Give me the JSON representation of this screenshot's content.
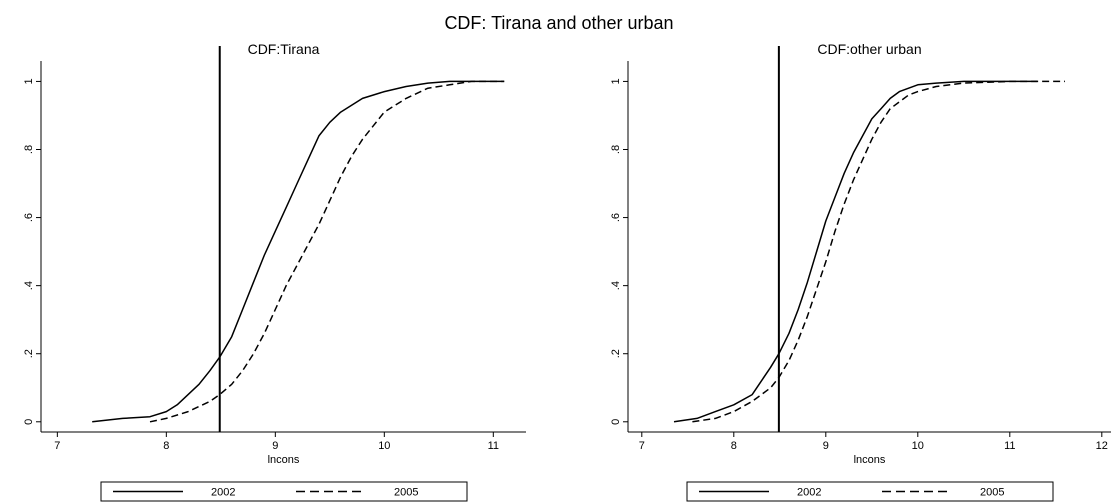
{
  "figure": {
    "title": "CDF: Tirana and other urban"
  },
  "chart_data": [
    {
      "type": "line",
      "title": "CDF:Tirana",
      "xlabel": "lncons",
      "ylabel": "",
      "xlim": [
        6.85,
        11.3
      ],
      "ylim": [
        -0.03,
        1.06
      ],
      "x_ticks": [
        7,
        8,
        9,
        10,
        11
      ],
      "x_tick_labels": [
        "7",
        "8",
        "9",
        "10",
        "11"
      ],
      "y_ticks": [
        0,
        0.2,
        0.4,
        0.6,
        0.8,
        1
      ],
      "y_tick_labels": [
        "0",
        ".2",
        ".4",
        ".6",
        ".8",
        "1"
      ],
      "grid": false,
      "legend_position": "bottom",
      "reference_line_x": 8.49,
      "series": [
        {
          "name": "2002",
          "style": "solid",
          "x": [
            7.32,
            7.6,
            7.85,
            8.0,
            8.1,
            8.2,
            8.3,
            8.4,
            8.49,
            8.6,
            8.7,
            8.8,
            8.9,
            9.0,
            9.1,
            9.2,
            9.3,
            9.4,
            9.5,
            9.6,
            9.7,
            9.8,
            9.9,
            10.0,
            10.2,
            10.4,
            10.6,
            11.1
          ],
          "y": [
            0.0,
            0.01,
            0.015,
            0.03,
            0.05,
            0.08,
            0.11,
            0.15,
            0.19,
            0.25,
            0.33,
            0.41,
            0.49,
            0.56,
            0.63,
            0.7,
            0.77,
            0.84,
            0.88,
            0.91,
            0.93,
            0.95,
            0.96,
            0.97,
            0.985,
            0.995,
            1.0,
            1.0
          ]
        },
        {
          "name": "2005",
          "style": "dashed",
          "x": [
            7.85,
            8.0,
            8.2,
            8.4,
            8.49,
            8.6,
            8.7,
            8.8,
            8.9,
            9.0,
            9.1,
            9.2,
            9.3,
            9.4,
            9.5,
            9.6,
            9.7,
            9.8,
            9.9,
            10.0,
            10.2,
            10.4,
            10.6,
            10.8,
            11.1
          ],
          "y": [
            0.0,
            0.01,
            0.03,
            0.06,
            0.08,
            0.11,
            0.15,
            0.2,
            0.26,
            0.33,
            0.4,
            0.46,
            0.52,
            0.58,
            0.65,
            0.72,
            0.78,
            0.83,
            0.87,
            0.91,
            0.95,
            0.98,
            0.99,
            1.0,
            1.0
          ]
        }
      ]
    },
    {
      "type": "line",
      "title": "CDF:other urban",
      "xlabel": "lncons",
      "ylabel": "",
      "xlim": [
        6.85,
        12.1
      ],
      "ylim": [
        -0.03,
        1.06
      ],
      "x_ticks": [
        7,
        8,
        9,
        10,
        11,
        12
      ],
      "x_tick_labels": [
        "7",
        "8",
        "9",
        "10",
        "11",
        "12"
      ],
      "y_ticks": [
        0,
        0.2,
        0.4,
        0.6,
        0.8,
        1
      ],
      "y_tick_labels": [
        "0",
        ".2",
        ".4",
        ".6",
        ".8",
        "1"
      ],
      "grid": false,
      "legend_position": "bottom",
      "reference_line_x": 8.49,
      "series": [
        {
          "name": "2002",
          "style": "solid",
          "x": [
            7.35,
            7.6,
            7.8,
            8.0,
            8.2,
            8.3,
            8.4,
            8.49,
            8.6,
            8.7,
            8.8,
            8.9,
            9.0,
            9.1,
            9.2,
            9.3,
            9.4,
            9.5,
            9.6,
            9.7,
            9.8,
            9.9,
            10.0,
            10.2,
            10.5,
            11.0,
            11.3
          ],
          "y": [
            0.0,
            0.01,
            0.03,
            0.05,
            0.08,
            0.12,
            0.16,
            0.2,
            0.26,
            0.33,
            0.41,
            0.5,
            0.59,
            0.66,
            0.73,
            0.79,
            0.84,
            0.89,
            0.92,
            0.95,
            0.97,
            0.98,
            0.99,
            0.995,
            1.0,
            1.0,
            1.0
          ]
        },
        {
          "name": "2005",
          "style": "dashed",
          "x": [
            7.55,
            7.8,
            8.0,
            8.2,
            8.4,
            8.49,
            8.6,
            8.7,
            8.8,
            8.9,
            9.0,
            9.1,
            9.2,
            9.3,
            9.4,
            9.5,
            9.6,
            9.7,
            9.8,
            9.9,
            10.0,
            10.2,
            10.5,
            11.0,
            11.6
          ],
          "y": [
            0.0,
            0.01,
            0.03,
            0.06,
            0.1,
            0.13,
            0.18,
            0.24,
            0.31,
            0.39,
            0.47,
            0.56,
            0.64,
            0.71,
            0.77,
            0.83,
            0.88,
            0.92,
            0.94,
            0.96,
            0.97,
            0.985,
            0.995,
            1.0,
            1.0
          ]
        }
      ]
    }
  ]
}
